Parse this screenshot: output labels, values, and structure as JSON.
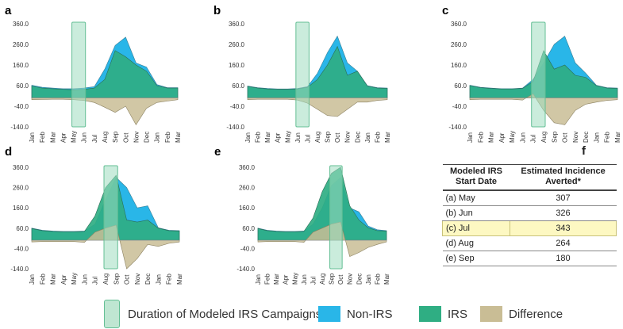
{
  "colors": {
    "non_irs": "#29b6e8",
    "irs": "#2fae83",
    "difference": "#c9bd95",
    "campaign_fill": "#9fdcc0",
    "campaign_stroke": "#64bf95",
    "highlight_row": "#fdf8c2"
  },
  "chart_data": [
    {
      "panel": "a",
      "type": "area",
      "categories": [
        "Jan",
        "Feb",
        "Mar",
        "Apr",
        "May",
        "Jun",
        "Jul",
        "Aug",
        "Sep",
        "Oct",
        "Nov",
        "Dec",
        "Jan",
        "Feb",
        "Mar"
      ],
      "y_ticks": [
        "360.0",
        "260.0",
        "160.0",
        "60.0",
        "-40.0",
        "-140.0"
      ],
      "ylim": [
        -140,
        360
      ],
      "campaign_months": [
        "May",
        "Jun"
      ],
      "series": [
        {
          "name": "Non-IRS",
          "values": [
            62,
            52,
            48,
            45,
            45,
            48,
            55,
            140,
            255,
            295,
            170,
            150,
            65,
            50,
            50
          ]
        },
        {
          "name": "IRS",
          "values": [
            58,
            48,
            45,
            42,
            40,
            42,
            48,
            90,
            230,
            200,
            160,
            130,
            60,
            48,
            48
          ]
        },
        {
          "name": "Difference",
          "values": [
            -8,
            -7,
            -6,
            -6,
            -8,
            -12,
            -22,
            -45,
            -70,
            -40,
            -130,
            -50,
            -22,
            -15,
            -8
          ]
        }
      ]
    },
    {
      "panel": "b",
      "type": "area",
      "categories": [
        "Jan",
        "Feb",
        "Mar",
        "Apr",
        "May",
        "Jun",
        "Jul",
        "Aug",
        "Sep",
        "Oct",
        "Nov",
        "Dec",
        "Jan",
        "Feb",
        "Mar"
      ],
      "y_ticks": [
        "360.0",
        "260.0",
        "160.0",
        "60.0",
        "-40.0",
        "-140.0"
      ],
      "ylim": [
        -140,
        360
      ],
      "campaign_months": [
        "Jun",
        "Jul"
      ],
      "series": [
        {
          "name": "Non-IRS",
          "values": [
            58,
            50,
            46,
            44,
            44,
            46,
            55,
            120,
            220,
            300,
            170,
            130,
            60,
            50,
            48
          ]
        },
        {
          "name": "IRS",
          "values": [
            56,
            48,
            44,
            42,
            42,
            44,
            52,
            90,
            160,
            250,
            110,
            130,
            58,
            48,
            46
          ]
        },
        {
          "name": "Difference",
          "values": [
            -8,
            -6,
            -6,
            -6,
            -6,
            -10,
            -25,
            -55,
            -85,
            -90,
            -55,
            -20,
            -20,
            -12,
            -8
          ]
        }
      ]
    },
    {
      "panel": "c",
      "type": "area",
      "categories": [
        "Jan",
        "Feb",
        "Mar",
        "Apr",
        "May",
        "Jun",
        "Jul",
        "Aug",
        "Sep",
        "Oct",
        "Nov",
        "Dec",
        "Jan",
        "Feb",
        "Mar"
      ],
      "y_ticks": [
        "360.0",
        "260.0",
        "160.0",
        "60.0",
        "-40.0",
        "-140.0"
      ],
      "ylim": [
        -140,
        360
      ],
      "campaign_months": [
        "Jul",
        "Aug"
      ],
      "series": [
        {
          "name": "Non-IRS",
          "values": [
            62,
            52,
            48,
            45,
            45,
            48,
            90,
            170,
            260,
            300,
            170,
            120,
            62,
            50,
            48
          ]
        },
        {
          "name": "IRS",
          "values": [
            60,
            50,
            46,
            44,
            44,
            46,
            80,
            230,
            140,
            160,
            110,
            100,
            60,
            48,
            46
          ]
        },
        {
          "name": "Difference",
          "values": [
            -8,
            -6,
            -6,
            -6,
            -6,
            -10,
            20,
            -60,
            -120,
            -130,
            -60,
            -30,
            -20,
            -12,
            -8
          ]
        }
      ]
    },
    {
      "panel": "d",
      "type": "area",
      "categories": [
        "Jan",
        "Feb",
        "Mar",
        "Apr",
        "May",
        "Jun",
        "Jul",
        "Aug",
        "Sep",
        "Oct",
        "Nov",
        "Dec",
        "Jan",
        "Feb",
        "Mar"
      ],
      "y_ticks": [
        "360.0",
        "260.0",
        "160.0",
        "60.0",
        "-40.0",
        "-140.0"
      ],
      "ylim": [
        -140,
        360
      ],
      "campaign_months": [
        "Aug",
        "Sep"
      ],
      "series": [
        {
          "name": "Non-IRS",
          "values": [
            60,
            50,
            46,
            44,
            44,
            46,
            80,
            200,
            310,
            260,
            160,
            170,
            62,
            50,
            48
          ]
        },
        {
          "name": "IRS",
          "values": [
            58,
            48,
            44,
            42,
            42,
            44,
            120,
            260,
            320,
            100,
            90,
            100,
            60,
            48,
            46
          ]
        },
        {
          "name": "Difference",
          "values": [
            -8,
            -6,
            -6,
            -6,
            -6,
            -10,
            40,
            60,
            75,
            -140,
            -90,
            -20,
            -30,
            -15,
            -8
          ]
        }
      ]
    },
    {
      "panel": "e",
      "type": "area",
      "categories": [
        "Jan",
        "Feb",
        "Mar",
        "Apr",
        "May",
        "Jun",
        "Jul",
        "Aug",
        "Sep",
        "Oct",
        "Nov",
        "Dec",
        "Jan",
        "Feb",
        "Mar"
      ],
      "y_ticks": [
        "360.0",
        "260.0",
        "160.0",
        "60.0",
        "-40.0",
        "-140.0"
      ],
      "ylim": [
        -140,
        360
      ],
      "campaign_months": [
        "Sep",
        "Oct"
      ],
      "series": [
        {
          "name": "Non-IRS",
          "values": [
            60,
            50,
            46,
            44,
            44,
            46,
            80,
            160,
            270,
            310,
            160,
            140,
            70,
            52,
            48
          ]
        },
        {
          "name": "IRS",
          "values": [
            58,
            48,
            44,
            42,
            42,
            44,
            110,
            240,
            330,
            360,
            170,
            100,
            62,
            48,
            46
          ]
        },
        {
          "name": "Difference",
          "values": [
            -8,
            -6,
            -6,
            -6,
            -6,
            -10,
            40,
            60,
            80,
            90,
            -80,
            -60,
            -35,
            -20,
            -8
          ]
        }
      ]
    }
  ],
  "table": {
    "panel_label": "f",
    "headers": [
      "Modeled IRS Start Date",
      "Estimated Incidence Averted*"
    ],
    "header_lines": [
      [
        "Modeled IRS",
        "Start Date"
      ],
      [
        "Estimated Incidence",
        "Averted*"
      ]
    ],
    "rows": [
      {
        "start": "(a) May",
        "averted": "307"
      },
      {
        "start": "(b) Jun",
        "averted": "326"
      },
      {
        "start": "(c) Jul",
        "averted": "343"
      },
      {
        "start": "(d) Aug",
        "averted": "264"
      },
      {
        "start": "(e) Sep",
        "averted": "180"
      }
    ],
    "highlight_row": 2
  },
  "legend": {
    "campaign": "Duration of Modeled IRS Campaigns",
    "non_irs": "Non-IRS",
    "irs": "IRS",
    "difference": "Difference"
  }
}
